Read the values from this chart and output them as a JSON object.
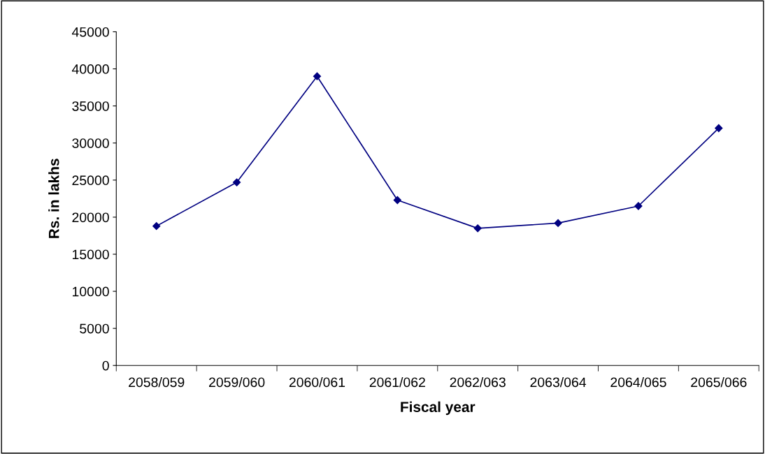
{
  "chart_data": {
    "type": "line",
    "xlabel": "Fiscal year",
    "ylabel": "Rs. in lakhs",
    "categories": [
      "2058/059",
      "2059/060",
      "2060/061",
      "2061/062",
      "2062/063",
      "2063/064",
      "2064/065",
      "2065/066"
    ],
    "series": [
      {
        "color": "#000080",
        "values": [
          18800,
          24700,
          39000,
          22300,
          18500,
          19200,
          21500,
          32000
        ]
      }
    ],
    "ylim": [
      0,
      45000
    ],
    "yticks": [
      0,
      5000,
      10000,
      15000,
      20000,
      25000,
      30000,
      35000,
      40000,
      45000
    ],
    "marker": "diamond",
    "line_style": "solid",
    "grid": false,
    "legend": false
  }
}
